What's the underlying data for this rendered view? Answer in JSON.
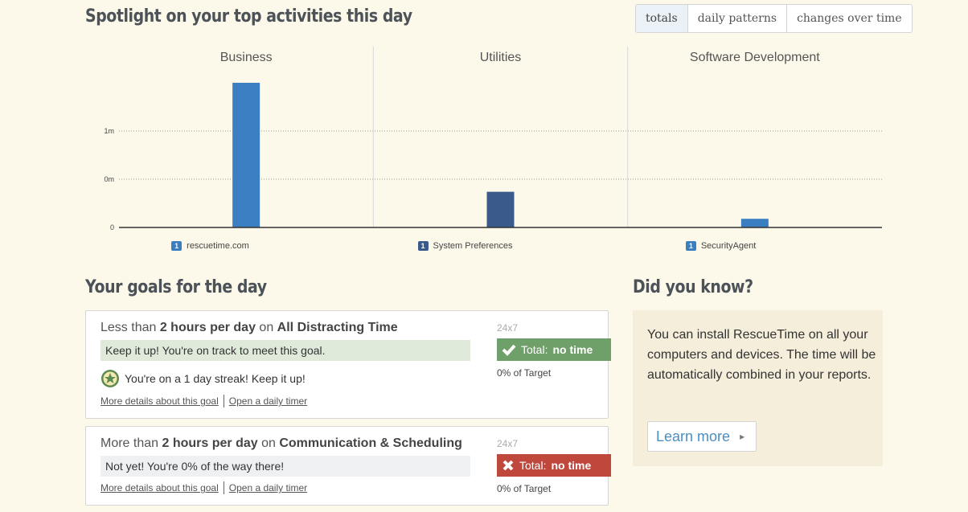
{
  "header": {
    "title": "Spotlight on your top activities this day",
    "view_tabs": [
      {
        "label": "totals",
        "active": true
      },
      {
        "label": "daily patterns",
        "active": false
      },
      {
        "label": "changes over time",
        "active": false
      }
    ]
  },
  "chart_data": {
    "type": "bar",
    "panels": [
      "Business",
      "Utilities",
      "Software Development"
    ],
    "categories": [
      "rescuetime.com",
      "System Preferences",
      "SecurityAgent"
    ],
    "rank_labels": [
      "1",
      "1",
      "1"
    ],
    "values": [
      1.5,
      0.37,
      0.09
    ],
    "colors": [
      "#3b7ec2",
      "#3b5a8c",
      "#3b7ec2"
    ],
    "yticks": [
      {
        "value": 0,
        "label": "0"
      },
      {
        "value": 0.5,
        "label": "0m"
      },
      {
        "value": 1.0,
        "label": "1m"
      }
    ],
    "ylim": [
      0,
      1.6
    ],
    "grid": true
  },
  "goals": {
    "title": "Your goals for the day",
    "items": [
      {
        "prefix": "Less than ",
        "amount": "2 hours per day",
        "mid": " on ",
        "category": "All Distracting Time",
        "status": "Keep it up! You're on track to meet this goal.",
        "streak": "You're on a 1 day streak! Keep it up!",
        "schedule": "24x7",
        "badge_prefix": "Total:",
        "badge_value": "no time",
        "percent": "0% of Target",
        "details_link": "More details about this goal",
        "timer_link": "Open a daily timer"
      },
      {
        "prefix": "More than ",
        "amount": "2 hours per day",
        "mid": " on ",
        "category": "Communication & Scheduling",
        "status": "Not yet! You're 0% of the way there!",
        "schedule": "24x7",
        "badge_prefix": "Total:",
        "badge_value": "no time",
        "percent": "0% of Target",
        "details_link": "More details about this goal",
        "timer_link": "Open a daily timer"
      }
    ]
  },
  "did_you_know": {
    "title": "Did you know?",
    "text": "You can install RescueTime on all your computers and devices. The time will be automatically combined in your reports.",
    "button": "Learn more"
  },
  "colors": {
    "background": "#fcf8ea",
    "success": "#6fa069",
    "danger": "#c0473c",
    "link": "#4a8fc2"
  }
}
